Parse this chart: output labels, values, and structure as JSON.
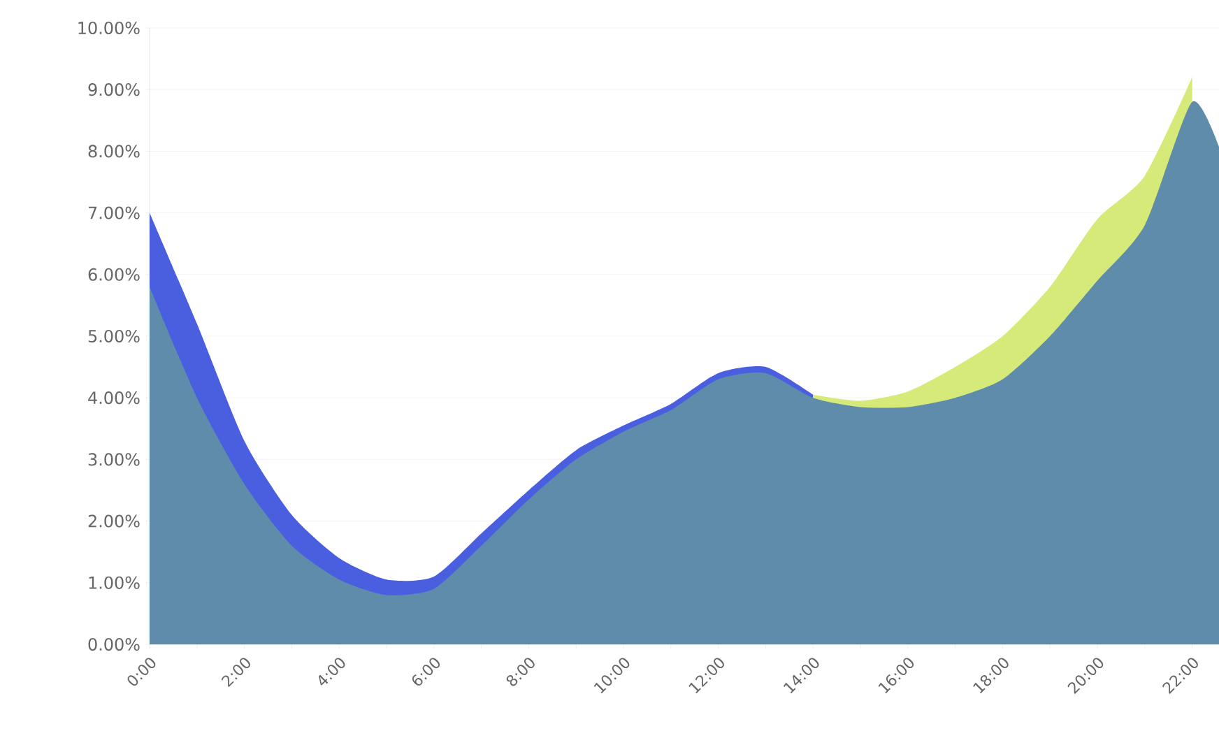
{
  "chart_data": {
    "type": "area",
    "xlim": [
      0,
      22.6
    ],
    "ylim": [
      0,
      10
    ],
    "xticks": [
      {
        "value": 0,
        "label": "0:00"
      },
      {
        "value": 1,
        "label": null
      },
      {
        "value": 2,
        "label": "2:00"
      },
      {
        "value": 3,
        "label": null
      },
      {
        "value": 4,
        "label": "4:00"
      },
      {
        "value": 5,
        "label": null
      },
      {
        "value": 6,
        "label": "6:00"
      },
      {
        "value": 7,
        "label": null
      },
      {
        "value": 8,
        "label": "8:00"
      },
      {
        "value": 9,
        "label": null
      },
      {
        "value": 10,
        "label": "10:00"
      },
      {
        "value": 11,
        "label": null
      },
      {
        "value": 12,
        "label": "12:00"
      },
      {
        "value": 13,
        "label": null
      },
      {
        "value": 14,
        "label": "14:00"
      },
      {
        "value": 15,
        "label": null
      },
      {
        "value": 16,
        "label": "16:00"
      },
      {
        "value": 17,
        "label": null
      },
      {
        "value": 18,
        "label": "18:00"
      },
      {
        "value": 19,
        "label": null
      },
      {
        "value": 20,
        "label": "20:00"
      },
      {
        "value": 21,
        "label": null
      },
      {
        "value": 22,
        "label": "22:00"
      }
    ],
    "yticks": [
      {
        "value": 0,
        "label": "0.00%"
      },
      {
        "value": 1,
        "label": "1.00%"
      },
      {
        "value": 2,
        "label": "2.00%"
      },
      {
        "value": 3,
        "label": "3.00%"
      },
      {
        "value": 4,
        "label": "4.00%"
      },
      {
        "value": 5,
        "label": "5.00%"
      },
      {
        "value": 6,
        "label": "6.00%"
      },
      {
        "value": 7,
        "label": "7.00%"
      },
      {
        "value": 8,
        "label": "8.00%"
      },
      {
        "value": 9,
        "label": "9.00%"
      },
      {
        "value": 10,
        "label": "10.00%"
      }
    ],
    "grid": "y",
    "series": [
      {
        "color": "#4a5fe0",
        "x": [
          0,
          1,
          2,
          3,
          4,
          5,
          6,
          7,
          8,
          9,
          10,
          11,
          12,
          13,
          14
        ],
        "values": [
          7.0,
          5.2,
          3.3,
          2.1,
          1.4,
          1.05,
          1.1,
          1.8,
          2.5,
          3.15,
          3.55,
          3.9,
          4.4,
          4.5,
          4.05
        ]
      },
      {
        "color": "#d6ea7a",
        "x": [
          14,
          15,
          16,
          17,
          18,
          19,
          20,
          21,
          22
        ],
        "values": [
          4.05,
          3.95,
          4.1,
          4.5,
          5.0,
          5.8,
          6.9,
          7.6,
          9.2
        ]
      },
      {
        "color": "#5f8cab",
        "x": [
          0,
          1,
          2,
          3,
          4,
          5,
          6,
          7,
          8,
          9,
          10,
          11,
          12,
          13,
          14,
          15,
          16,
          17,
          18,
          19,
          20,
          21,
          22,
          22.6
        ],
        "values": [
          5.8,
          4.0,
          2.6,
          1.6,
          1.05,
          0.8,
          0.9,
          1.6,
          2.35,
          3.0,
          3.45,
          3.8,
          4.3,
          4.4,
          4.0,
          3.85,
          3.85,
          4.0,
          4.3,
          5.0,
          5.9,
          6.8,
          8.8,
          8.0
        ]
      }
    ]
  }
}
